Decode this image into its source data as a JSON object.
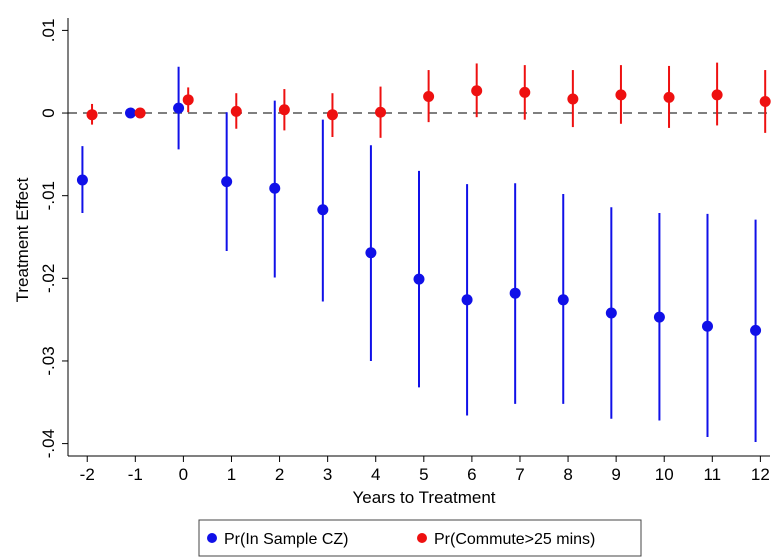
{
  "chart_data": {
    "type": "scatter",
    "xlabel": "Years to Treatment",
    "ylabel": "Treatment Effect",
    "x": [
      -2,
      -1,
      0,
      1,
      2,
      3,
      4,
      5,
      6,
      7,
      8,
      9,
      10,
      11,
      12
    ],
    "x_tick_labels": [
      "-2",
      "-1",
      "0",
      "1",
      "2",
      "3",
      "4",
      "5",
      "6",
      "7",
      "8",
      "9",
      "10",
      "11",
      "12"
    ],
    "y_ticks": [
      0.01,
      0,
      -0.01,
      -0.02,
      -0.03,
      -0.04
    ],
    "y_tick_labels": [
      ".01",
      "0",
      "-.01",
      "-.02",
      "-.03",
      "-.04"
    ],
    "xlim": [
      -2.4,
      12.2
    ],
    "ylim": [
      -0.0415,
      0.0115
    ],
    "reference_line": {
      "y": 0,
      "style": "dashed",
      "color": "#555555"
    },
    "grid": false,
    "legend_position": "bottom",
    "series": [
      {
        "name": "Pr(In Sample CZ)",
        "color": "#1010e8",
        "offset": -0.1,
        "estimate": [
          -0.0081,
          0.0,
          0.0006,
          -0.0083,
          -0.0091,
          -0.0117,
          -0.0169,
          -0.0201,
          -0.0226,
          -0.0218,
          -0.0226,
          -0.0242,
          -0.0247,
          -0.0258,
          -0.0263
        ],
        "ci_low": [
          -0.0121,
          0.0,
          -0.0044,
          -0.0167,
          -0.0199,
          -0.0228,
          -0.03,
          -0.0332,
          -0.0366,
          -0.0352,
          -0.0352,
          -0.037,
          -0.0372,
          -0.0392,
          -0.0398
        ],
        "ci_high": [
          -0.004,
          0.0,
          0.0056,
          0.0001,
          0.0015,
          -0.0008,
          -0.0039,
          -0.007,
          -0.0086,
          -0.0085,
          -0.0098,
          -0.0114,
          -0.0121,
          -0.0122,
          -0.0129
        ]
      },
      {
        "name": "Pr(Commute>25 mins)",
        "color": "#ee1010",
        "offset": 0.1,
        "estimate": [
          -0.0002,
          0.0,
          0.0016,
          0.0002,
          0.0004,
          -0.0002,
          0.0001,
          0.002,
          0.0027,
          0.0025,
          0.0017,
          0.0022,
          0.0019,
          0.0022,
          0.0014
        ],
        "ci_low": [
          -0.0014,
          0.0,
          0.0001,
          -0.0019,
          -0.0021,
          -0.0029,
          -0.003,
          -0.0011,
          -0.0005,
          -0.0008,
          -0.0017,
          -0.0013,
          -0.0018,
          -0.0015,
          -0.0024
        ],
        "ci_high": [
          0.0011,
          0.0,
          0.0031,
          0.0024,
          0.0029,
          0.0024,
          0.0032,
          0.0052,
          0.006,
          0.0058,
          0.0052,
          0.0058,
          0.0057,
          0.0061,
          0.0052
        ]
      }
    ]
  }
}
